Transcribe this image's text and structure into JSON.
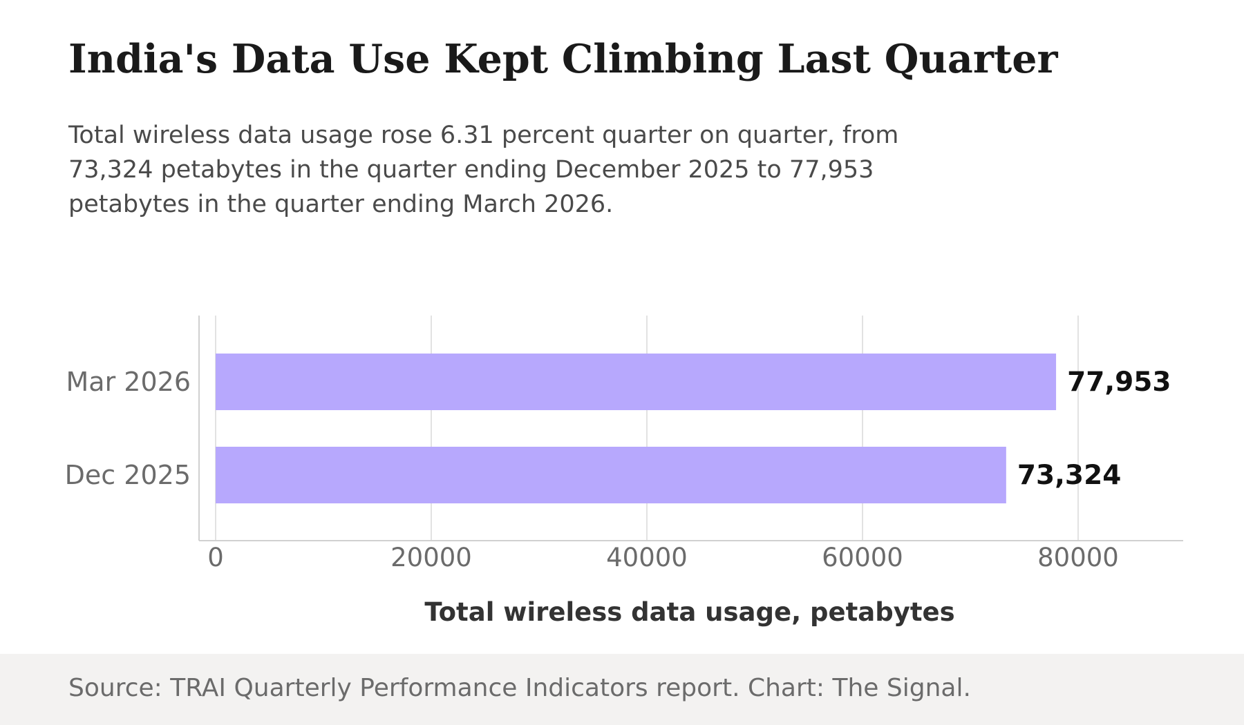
{
  "header": {
    "title": "India's Data Use Kept Climbing Last Quarter",
    "subtitle": "Total wireless data usage rose 6.31 percent quarter on quarter, from 73,324 petabytes in the quarter ending December 2025 to 77,953 petabytes in the quarter ending March 2026."
  },
  "footer": {
    "source": "Source: TRAI Quarterly Performance Indicators report. Chart: The Signal."
  },
  "colors": {
    "bar": "#b7a8fd",
    "grid": "#e2e2e2",
    "axis": "#d0d0d0",
    "tick_label": "#6b6b6b",
    "axis_title": "#333333",
    "value_label": "#111111",
    "footer_bg": "#f3f2f1"
  },
  "chart_data": {
    "type": "bar",
    "orientation": "horizontal",
    "categories": [
      "Mar 2026",
      "Dec 2025"
    ],
    "values": [
      77953,
      73324
    ],
    "value_labels": [
      "77,953",
      "73,324"
    ],
    "xlabel": "Total wireless data usage, petabytes",
    "ylabel": "",
    "xlim": [
      0,
      80000
    ],
    "xticks": [
      0,
      20000,
      40000,
      60000,
      80000
    ],
    "xtick_labels": [
      "0",
      "20000",
      "40000",
      "60000",
      "80000"
    ],
    "grid": true,
    "legend": "none"
  }
}
